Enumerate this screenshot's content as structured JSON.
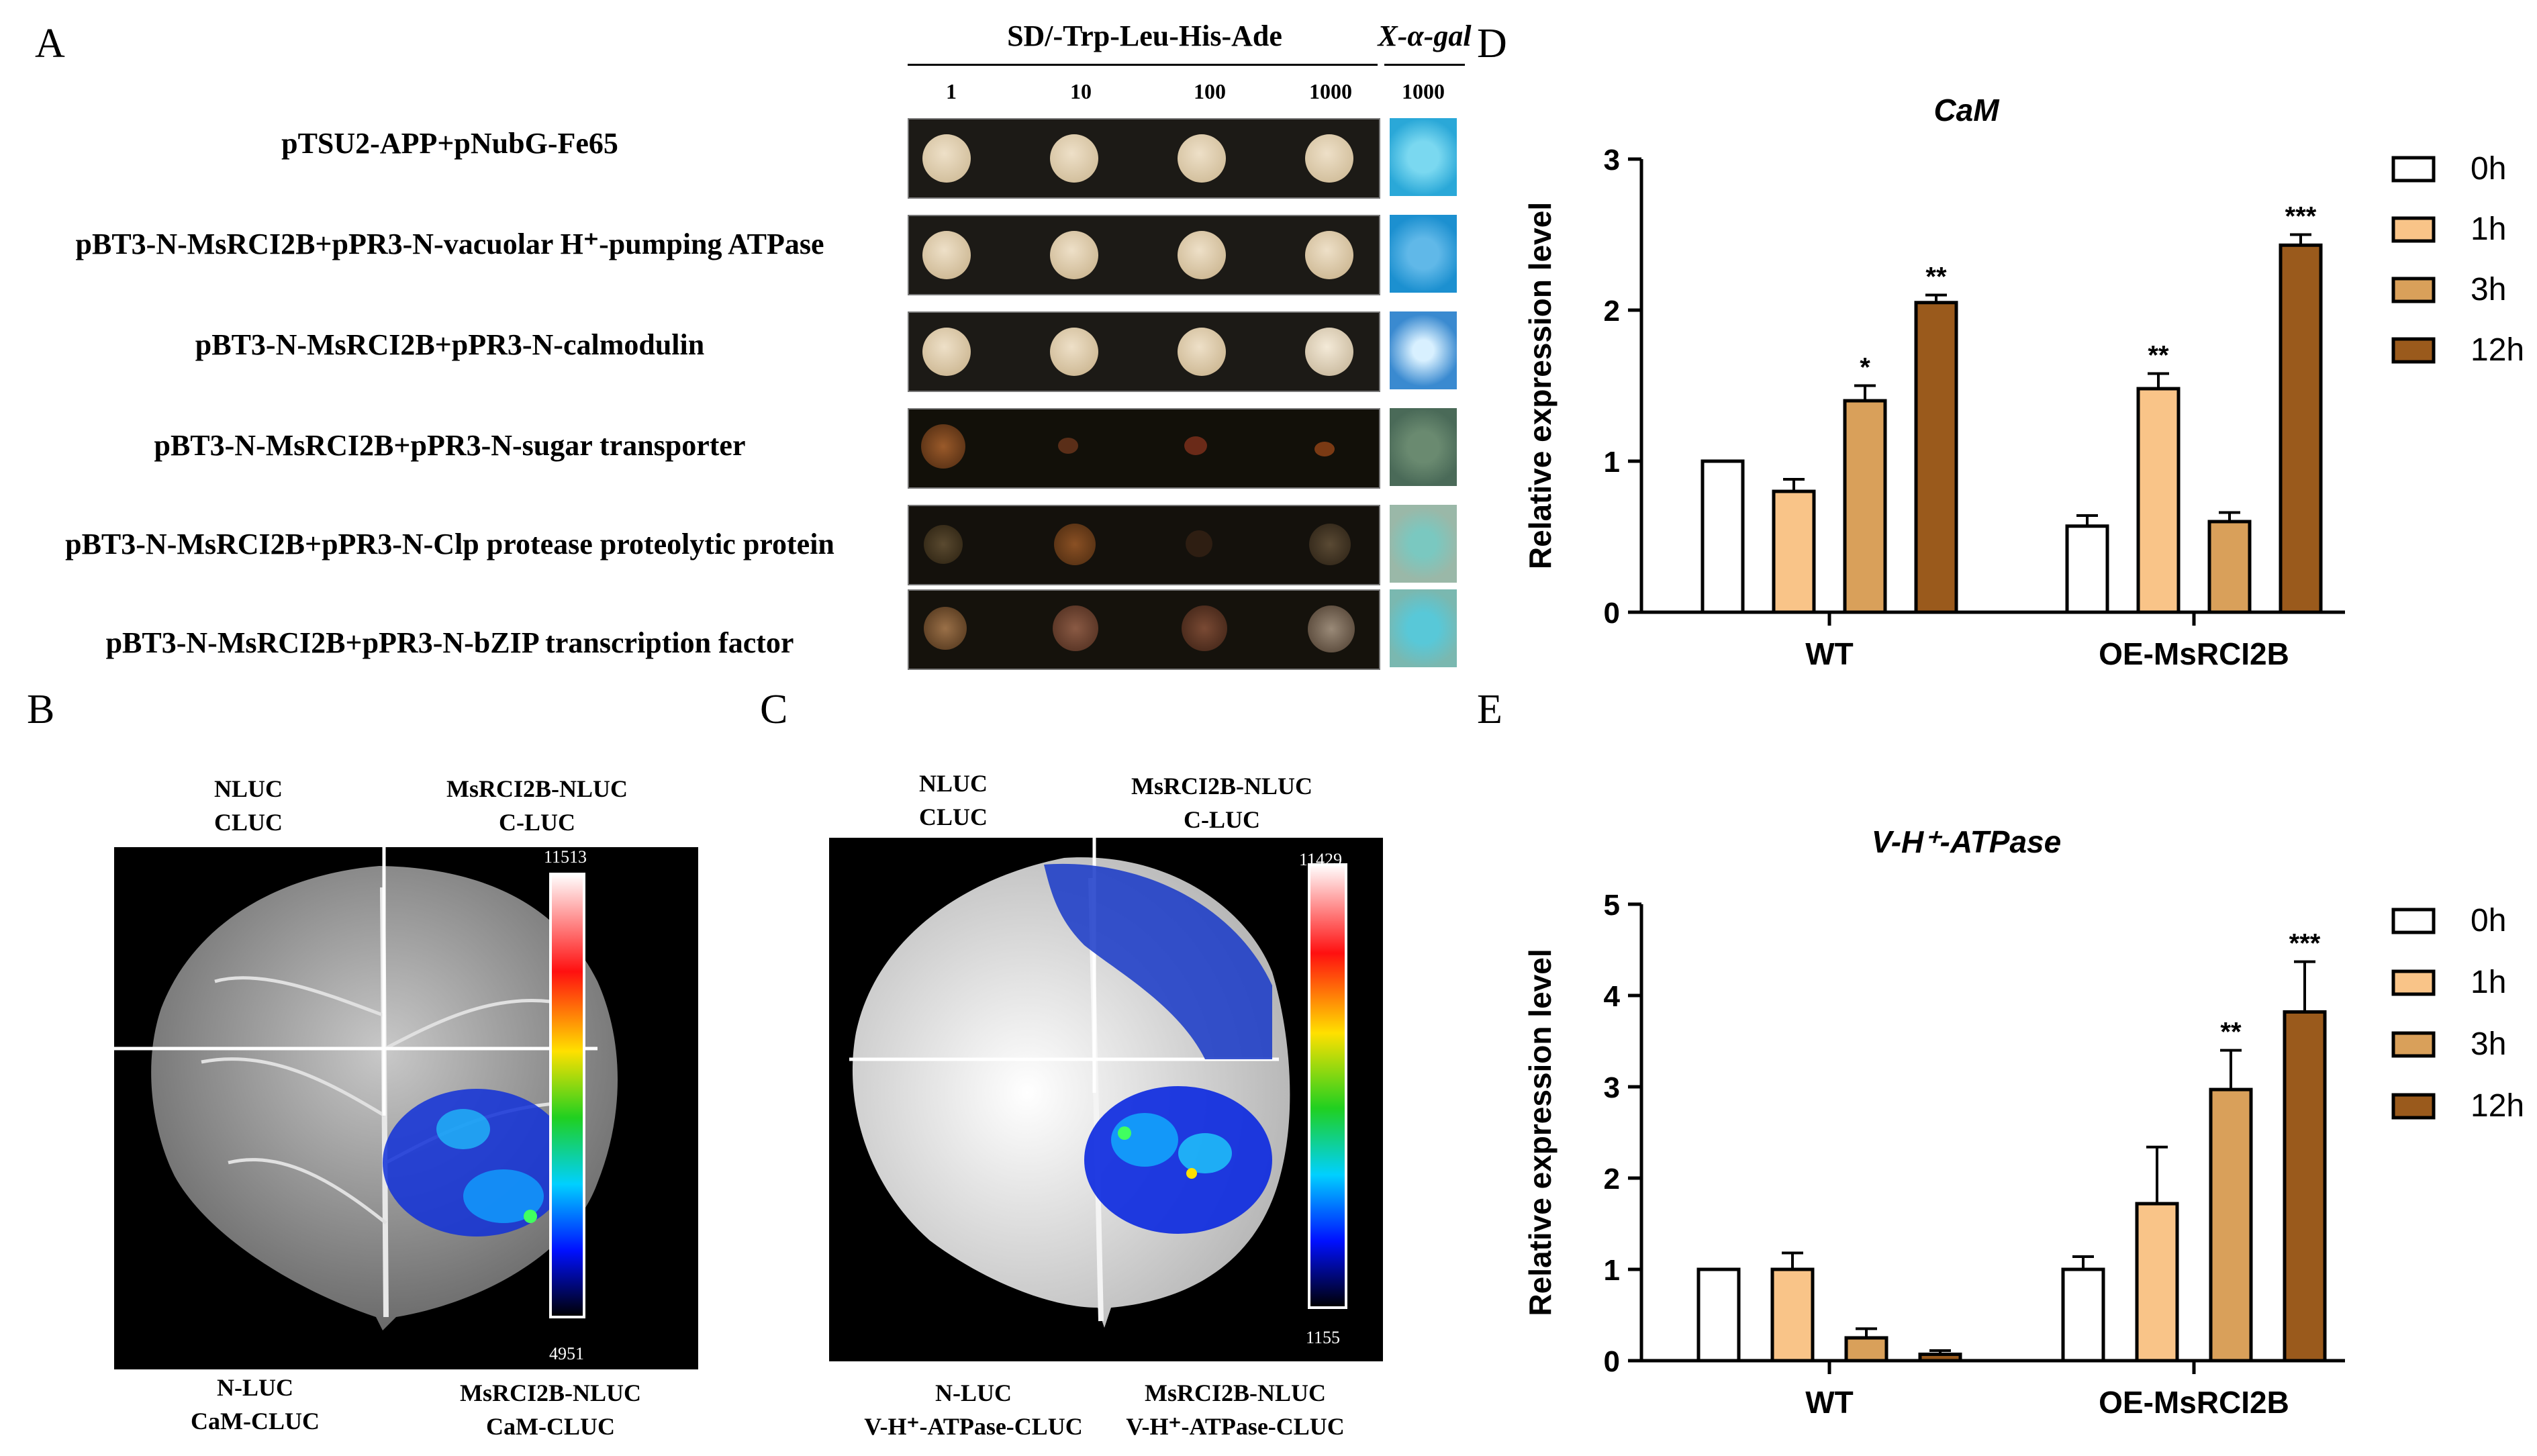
{
  "panel_a": {
    "label": "A",
    "header_sd": "SD/-Trp-Leu-His-Ade",
    "header_x": "X-α-gal",
    "dilutions": [
      "1",
      "10",
      "100",
      "1000"
    ],
    "xgal_dilution": "1000",
    "rows": [
      "pTSU2-APP+pNubG-Fe65",
      "pBT3-N-MsRCI2B+pPR3-N-vacuolar H⁺-pumping ATPase",
      "pBT3-N-MsRCI2B+pPR3-N-calmodulin",
      "pBT3-N-MsRCI2B+pPR3-N-sugar transporter",
      "pBT3-N-MsRCI2B+pPR3-N-Clp protease proteolytic protein",
      "pBT3-N-MsRCI2B+pPR3-N-bZIP transcription factor"
    ]
  },
  "panel_b": {
    "label": "B",
    "tl": [
      "NLUC",
      "CLUC"
    ],
    "tr": [
      "MsRCI2B-NLUC",
      "C-LUC"
    ],
    "bl": [
      "N-LUC",
      "CaM-CLUC"
    ],
    "br": [
      "MsRCI2B-NLUC",
      "CaM-CLUC"
    ],
    "scale_max": "11513",
    "scale_min": "4951"
  },
  "panel_c": {
    "label": "C",
    "tl": [
      "NLUC",
      "CLUC"
    ],
    "tr": [
      "MsRCI2B-NLUC",
      "C-LUC"
    ],
    "bl": [
      "N-LUC",
      "V-H⁺-ATPase-CLUC"
    ],
    "br": [
      "MsRCI2B-NLUC",
      "V-H⁺-ATPase-CLUC"
    ],
    "scale_max": "11429",
    "scale_min": "1155"
  },
  "panel_d": {
    "label": "D"
  },
  "panel_e": {
    "label": "E"
  },
  "chart_data": [
    {
      "type": "bar",
      "title": "CaM",
      "ylabel": "Relative expression level",
      "xlabel": "",
      "ylim": [
        0,
        3
      ],
      "yticks": [
        "0",
        "1",
        "2",
        "3"
      ],
      "categories": [
        "WT",
        "OE-MsRCI2B"
      ],
      "colors": [
        "#ffffff",
        "#f9c488",
        "#d9a05a",
        "#9a5a1c"
      ],
      "series": [
        {
          "name": "0h",
          "values": [
            1.0,
            0.57
          ],
          "errors": [
            0,
            0.07
          ]
        },
        {
          "name": "1h",
          "values": [
            0.8,
            1.48
          ],
          "errors": [
            0.08,
            0.1
          ]
        },
        {
          "name": "3h",
          "values": [
            1.4,
            0.6
          ],
          "errors": [
            0.1,
            0.06
          ]
        },
        {
          "name": "12h",
          "values": [
            2.05,
            2.43
          ],
          "errors": [
            0.05,
            0.07
          ]
        }
      ],
      "significance": [
        {
          "category": 0,
          "series": 2,
          "text": "*"
        },
        {
          "category": 0,
          "series": 3,
          "text": "**"
        },
        {
          "category": 1,
          "series": 1,
          "text": "**"
        },
        {
          "category": 1,
          "series": 3,
          "text": "***"
        }
      ]
    },
    {
      "type": "bar",
      "title": "V-H⁺-ATPase",
      "ylabel": "Relative expression level",
      "xlabel": "",
      "ylim": [
        0,
        5
      ],
      "yticks": [
        "0",
        "1",
        "2",
        "3",
        "4",
        "5"
      ],
      "categories": [
        "WT",
        "OE-MsRCI2B"
      ],
      "colors": [
        "#ffffff",
        "#f9c488",
        "#d9a05a",
        "#9a5a1c"
      ],
      "series": [
        {
          "name": "0h",
          "values": [
            1.0,
            1.0
          ],
          "errors": [
            0,
            0.14
          ]
        },
        {
          "name": "1h",
          "values": [
            1.0,
            1.72
          ],
          "errors": [
            0.18,
            0.62
          ]
        },
        {
          "name": "3h",
          "values": [
            0.25,
            2.97
          ],
          "errors": [
            0.1,
            0.43
          ]
        },
        {
          "name": "12h",
          "values": [
            0.07,
            3.82
          ],
          "errors": [
            0.04,
            0.55
          ]
        }
      ],
      "significance": [
        {
          "category": 1,
          "series": 2,
          "text": "**"
        },
        {
          "category": 1,
          "series": 3,
          "text": "***"
        }
      ]
    }
  ]
}
